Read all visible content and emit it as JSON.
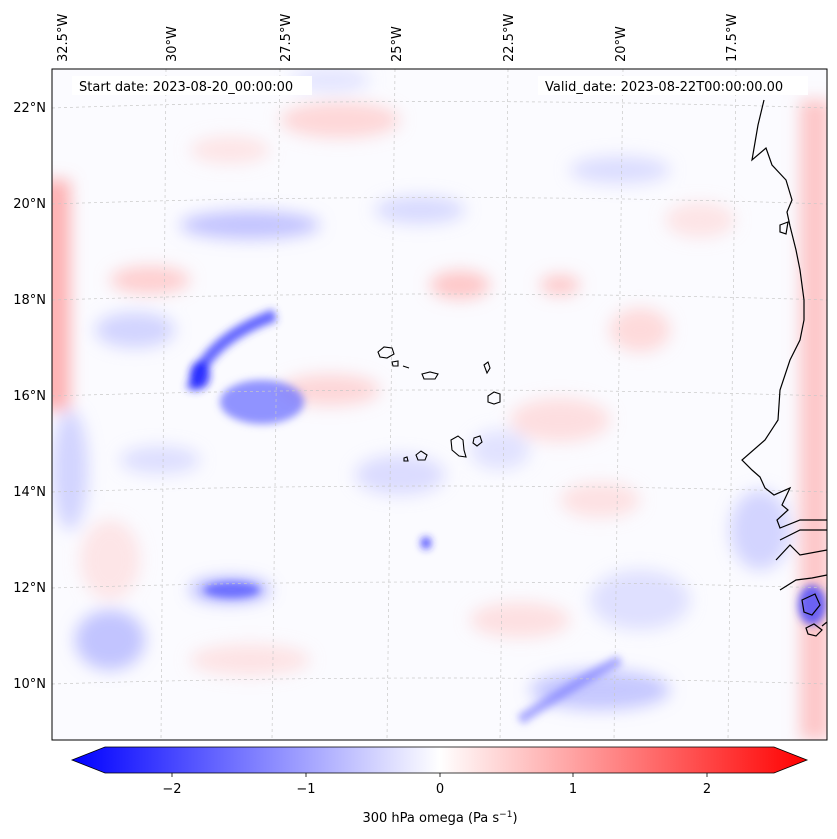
{
  "map": {
    "start_date": "Start date: 2023-08-20_00:00:00",
    "valid_date": "Valid_date: 2023-08-22T00:00:00.00",
    "lon_labels": [
      "32.5°W",
      "30°W",
      "27.5°W",
      "25°W",
      "22.5°W",
      "20°W",
      "17.5°W"
    ],
    "lat_labels": [
      "22°N",
      "20°N",
      "18°N",
      "16°N",
      "14°N",
      "12°N",
      "10°N"
    ],
    "colorbar": {
      "title": "300 hPa omega (Pa s",
      "title_sup": "−1",
      "title_end": ")",
      "ticks": [
        "−2",
        "−1",
        "0",
        "1",
        "2"
      ],
      "range": [
        -2.6,
        2.6
      ],
      "colors": {
        "negative": "#0000ff",
        "zero": "#ffffff",
        "positive": "#ff0000"
      }
    },
    "features": [
      "cape-verde-islands",
      "west-african-coastline",
      "graticule"
    ]
  }
}
